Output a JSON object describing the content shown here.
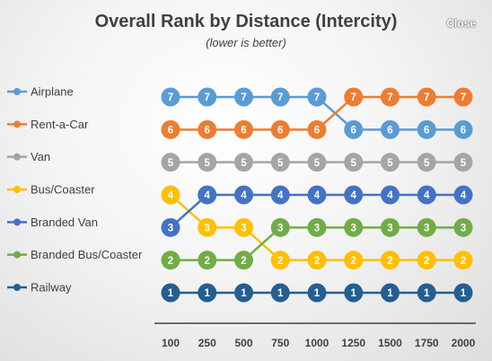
{
  "close_label": "Close",
  "chart_data": {
    "type": "line",
    "title": "Overall Rank by Distance (Intercity)",
    "subtitle": "(lower is better)",
    "x": [
      "100",
      "250",
      "500",
      "750",
      "1000",
      "1250",
      "1500",
      "1750",
      "2000"
    ],
    "ylim": [
      1,
      7
    ],
    "legend_position": "left",
    "series": [
      {
        "name": "Airplane",
        "color": "#5b9bd5",
        "values": [
          7,
          7,
          7,
          7,
          7,
          6,
          6,
          6,
          6
        ]
      },
      {
        "name": "Rent-a-Car",
        "color": "#ed7d31",
        "values": [
          6,
          6,
          6,
          6,
          6,
          7,
          7,
          7,
          7
        ]
      },
      {
        "name": "Van",
        "color": "#a5a5a5",
        "values": [
          5,
          5,
          5,
          5,
          5,
          5,
          5,
          5,
          5
        ]
      },
      {
        "name": "Bus/Coaster",
        "color": "#ffc000",
        "values": [
          4,
          3,
          3,
          2,
          2,
          2,
          2,
          2,
          2
        ]
      },
      {
        "name": "Branded Van",
        "color": "#4472c4",
        "values": [
          3,
          4,
          4,
          4,
          4,
          4,
          4,
          4,
          4
        ]
      },
      {
        "name": "Branded Bus/Coaster",
        "color": "#70ad47",
        "values": [
          2,
          2,
          2,
          3,
          3,
          3,
          3,
          3,
          3
        ]
      },
      {
        "name": "Railway",
        "color": "#255e91",
        "values": [
          1,
          1,
          1,
          1,
          1,
          1,
          1,
          1,
          1
        ]
      }
    ]
  }
}
